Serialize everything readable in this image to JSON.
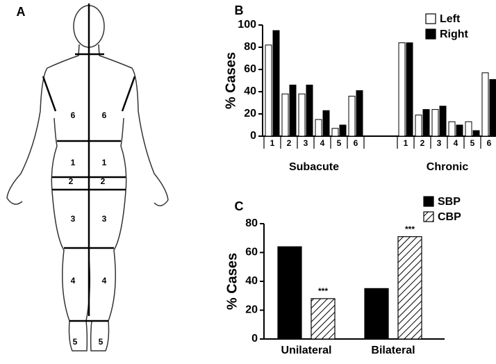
{
  "figure_a": {
    "label": "A",
    "regions": [
      "6",
      "6",
      "1",
      "1",
      "2",
      "2",
      "3",
      "3",
      "4",
      "4",
      "5",
      "5"
    ]
  },
  "chart_data": [
    {
      "type": "grouped_bar",
      "label": "B",
      "ylabel": "% Cases",
      "groups": [
        "Subacute",
        "Chronic"
      ],
      "categories": [
        "1",
        "2",
        "3",
        "4",
        "5",
        "6"
      ],
      "series": [
        {
          "name": "Left",
          "color": "#ffffff",
          "values": [
            [
              82,
              38,
              38,
              15,
              7,
              36
            ],
            [
              84,
              19,
              24,
              13,
              13,
              57
            ]
          ]
        },
        {
          "name": "Right",
          "color": "#000000",
          "values": [
            [
              95,
              46,
              46,
              23,
              10,
              41
            ],
            [
              84,
              24,
              27,
              10,
              5,
              51
            ]
          ]
        }
      ],
      "ylim": [
        0,
        100
      ],
      "yticks": [
        0,
        20,
        40,
        60,
        80,
        100
      ],
      "legend": "top-right"
    },
    {
      "type": "bar",
      "label": "C",
      "ylabel": "% Cases",
      "categories": [
        "Unilateral",
        "Bilateral"
      ],
      "series": [
        {
          "name": "SBP",
          "color": "#000000",
          "values": [
            64,
            35
          ]
        },
        {
          "name": "CBP",
          "color": "#000000",
          "hatch": true,
          "values": [
            28,
            71
          ],
          "annotations": [
            "***",
            "***"
          ]
        }
      ],
      "ylim": [
        0,
        80
      ],
      "yticks": [
        0,
        20,
        40,
        60,
        80
      ],
      "legend": "top-right"
    }
  ]
}
